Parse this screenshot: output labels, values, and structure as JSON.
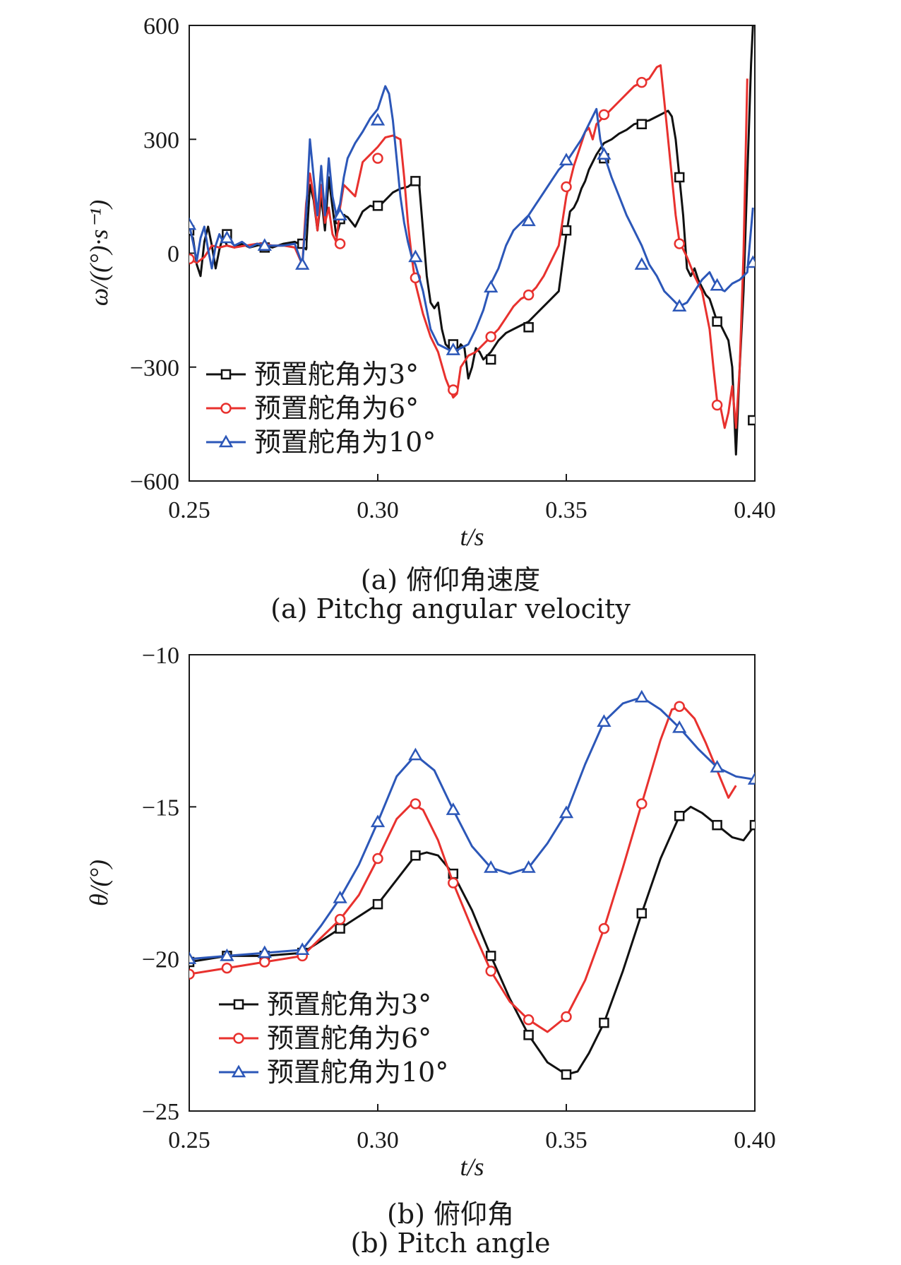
{
  "chart_data": [
    {
      "type": "line",
      "caption_cn": "(a) 俯仰角速度",
      "caption_en": "(a) Pitchg angular velocity",
      "xlabel": "t/s",
      "ylabel": "ω/((°)·s⁻¹)",
      "xlim": [
        0.25,
        0.4
      ],
      "ylim": [
        -600,
        600
      ],
      "xticks": [
        "0.25",
        "0.30",
        "0.35",
        "0.40"
      ],
      "yticks": [
        "600",
        "300",
        "0",
        "−300",
        "−600"
      ],
      "grid": false,
      "legend_position": "bottom-left",
      "series": [
        {
          "name": "预置舵角为3°",
          "color": "#111111",
          "marker": "square",
          "x": [
            0.25,
            0.251,
            0.252,
            0.253,
            0.254,
            0.255,
            0.256,
            0.257,
            0.258,
            0.259,
            0.26,
            0.262,
            0.264,
            0.266,
            0.268,
            0.27,
            0.272,
            0.275,
            0.278,
            0.28,
            0.281,
            0.282,
            0.283,
            0.284,
            0.285,
            0.286,
            0.287,
            0.288,
            0.289,
            0.29,
            0.291,
            0.292,
            0.294,
            0.296,
            0.298,
            0.3,
            0.302,
            0.304,
            0.306,
            0.308,
            0.31,
            0.311,
            0.312,
            0.313,
            0.314,
            0.315,
            0.316,
            0.317,
            0.318,
            0.319,
            0.32,
            0.321,
            0.322,
            0.323,
            0.324,
            0.325,
            0.326,
            0.327,
            0.328,
            0.33,
            0.332,
            0.334,
            0.336,
            0.338,
            0.34,
            0.342,
            0.345,
            0.348,
            0.35,
            0.351,
            0.352,
            0.353,
            0.354,
            0.355,
            0.356,
            0.358,
            0.36,
            0.362,
            0.364,
            0.366,
            0.368,
            0.37,
            0.372,
            0.374,
            0.376,
            0.377,
            0.378,
            0.379,
            0.38,
            0.381,
            0.382,
            0.383,
            0.384,
            0.385,
            0.386,
            0.387,
            0.388,
            0.389,
            0.39,
            0.391,
            0.392,
            0.393,
            0.394,
            0.395,
            0.396,
            0.397,
            0.398,
            0.399,
            0.3995
          ],
          "y": [
            55,
            40,
            -30,
            -60,
            30,
            70,
            20,
            -40,
            10,
            45,
            20,
            15,
            25,
            15,
            20,
            25,
            15,
            25,
            30,
            20,
            10,
            180,
            140,
            60,
            150,
            60,
            200,
            120,
            45,
            80,
            100,
            95,
            70,
            110,
            125,
            120,
            140,
            160,
            170,
            175,
            190,
            180,
            60,
            -60,
            -130,
            -145,
            -130,
            -200,
            -240,
            -250,
            -255,
            -260,
            -240,
            -250,
            -330,
            -300,
            -250,
            -260,
            -280,
            -260,
            -230,
            -210,
            -200,
            -190,
            -180,
            -160,
            -130,
            -100,
            50,
            110,
            120,
            140,
            170,
            190,
            220,
            260,
            290,
            300,
            315,
            325,
            340,
            345,
            350,
            360,
            370,
            375,
            360,
            300,
            200,
            100,
            -40,
            -60,
            -40,
            -70,
            -90,
            -110,
            -120,
            -150,
            -180,
            -190,
            -210,
            -230,
            -300,
            -530,
            -300,
            -100,
            200,
            500,
            600
          ],
          "markers_x": [
            0.25,
            0.26,
            0.27,
            0.28,
            0.29,
            0.3,
            0.31,
            0.32,
            0.33,
            0.34,
            0.35,
            0.36,
            0.37,
            0.38,
            0.39,
            0.3995
          ],
          "markers_y": [
            60,
            50,
            15,
            25,
            90,
            125,
            190,
            -240,
            -280,
            -195,
            60,
            250,
            340,
            200,
            -180,
            -440
          ]
        },
        {
          "name": "预置舵角为6°",
          "color": "#e8312e",
          "marker": "circle",
          "x": [
            0.25,
            0.252,
            0.254,
            0.256,
            0.258,
            0.26,
            0.262,
            0.265,
            0.268,
            0.27,
            0.272,
            0.275,
            0.278,
            0.28,
            0.281,
            0.282,
            0.283,
            0.284,
            0.285,
            0.286,
            0.287,
            0.288,
            0.289,
            0.29,
            0.291,
            0.292,
            0.294,
            0.296,
            0.298,
            0.3,
            0.302,
            0.304,
            0.306,
            0.307,
            0.308,
            0.309,
            0.31,
            0.312,
            0.314,
            0.316,
            0.318,
            0.32,
            0.321,
            0.322,
            0.324,
            0.326,
            0.328,
            0.33,
            0.332,
            0.334,
            0.336,
            0.338,
            0.34,
            0.342,
            0.344,
            0.346,
            0.348,
            0.35,
            0.352,
            0.354,
            0.355,
            0.356,
            0.357,
            0.358,
            0.36,
            0.362,
            0.364,
            0.366,
            0.368,
            0.37,
            0.372,
            0.374,
            0.375,
            0.376,
            0.377,
            0.378,
            0.379,
            0.38,
            0.382,
            0.384,
            0.386,
            0.388,
            0.389,
            0.39,
            0.391,
            0.392,
            0.393,
            0.394,
            0.395,
            0.396,
            0.397,
            0.398
          ],
          "y": [
            -15,
            -25,
            -10,
            20,
            15,
            20,
            15,
            20,
            25,
            25,
            20,
            20,
            15,
            -30,
            130,
            210,
            150,
            60,
            180,
            80,
            120,
            50,
            30,
            120,
            180,
            170,
            150,
            240,
            260,
            280,
            305,
            310,
            300,
            200,
            80,
            -10,
            -80,
            -160,
            -220,
            -260,
            -330,
            -380,
            -370,
            -300,
            -270,
            -260,
            -240,
            -220,
            -200,
            -170,
            -140,
            -120,
            -110,
            -90,
            -60,
            -20,
            20,
            150,
            230,
            290,
            320,
            330,
            300,
            340,
            360,
            380,
            400,
            420,
            440,
            450,
            460,
            490,
            495,
            400,
            300,
            200,
            100,
            30,
            -10,
            -60,
            -100,
            -200,
            -300,
            -390,
            -410,
            -460,
            -420,
            -350,
            -460,
            -300,
            0,
            460
          ],
          "markers_x": [
            0.25,
            0.29,
            0.3,
            0.31,
            0.32,
            0.33,
            0.34,
            0.35,
            0.36,
            0.37,
            0.38,
            0.39
          ],
          "markers_y": [
            -15,
            25,
            250,
            -65,
            -360,
            -220,
            -110,
            175,
            365,
            450,
            25,
            -400
          ]
        },
        {
          "name": "预置舵角为10°",
          "color": "#2c57b8",
          "marker": "triangle",
          "x": [
            0.25,
            0.251,
            0.252,
            0.253,
            0.254,
            0.255,
            0.256,
            0.257,
            0.258,
            0.259,
            0.26,
            0.262,
            0.264,
            0.266,
            0.268,
            0.27,
            0.272,
            0.275,
            0.278,
            0.28,
            0.281,
            0.282,
            0.283,
            0.284,
            0.285,
            0.286,
            0.287,
            0.288,
            0.289,
            0.29,
            0.291,
            0.292,
            0.294,
            0.296,
            0.298,
            0.3,
            0.301,
            0.302,
            0.303,
            0.304,
            0.305,
            0.306,
            0.307,
            0.308,
            0.309,
            0.31,
            0.312,
            0.314,
            0.316,
            0.318,
            0.32,
            0.322,
            0.324,
            0.326,
            0.328,
            0.33,
            0.332,
            0.334,
            0.336,
            0.338,
            0.34,
            0.342,
            0.344,
            0.346,
            0.348,
            0.35,
            0.352,
            0.354,
            0.356,
            0.358,
            0.359,
            0.36,
            0.362,
            0.364,
            0.366,
            0.368,
            0.37,
            0.372,
            0.374,
            0.376,
            0.378,
            0.38,
            0.382,
            0.384,
            0.386,
            0.388,
            0.39,
            0.392,
            0.394,
            0.396,
            0.398,
            0.3995
          ],
          "y": [
            75,
            30,
            -20,
            40,
            70,
            10,
            -40,
            20,
            50,
            30,
            40,
            20,
            30,
            15,
            25,
            20,
            20,
            20,
            25,
            -30,
            100,
            300,
            200,
            100,
            230,
            100,
            250,
            150,
            100,
            130,
            200,
            250,
            290,
            320,
            355,
            380,
            410,
            440,
            420,
            350,
            250,
            150,
            80,
            30,
            -10,
            -30,
            -100,
            -200,
            -240,
            -250,
            -260,
            -250,
            -240,
            -200,
            -150,
            -80,
            -40,
            20,
            60,
            80,
            100,
            130,
            160,
            190,
            220,
            240,
            270,
            300,
            340,
            380,
            300,
            260,
            200,
            150,
            100,
            60,
            20,
            -30,
            -60,
            -100,
            -120,
            -140,
            -130,
            -100,
            -70,
            -50,
            -90,
            -100,
            -80,
            -70,
            -50,
            120
          ],
          "markers_x": [
            0.25,
            0.26,
            0.27,
            0.28,
            0.29,
            0.3,
            0.31,
            0.32,
            0.33,
            0.34,
            0.35,
            0.36,
            0.37,
            0.38,
            0.39,
            0.3995
          ],
          "markers_y": [
            75,
            40,
            20,
            -30,
            100,
            350,
            -10,
            -255,
            -90,
            85,
            245,
            260,
            -30,
            -140,
            -85,
            -25
          ]
        }
      ]
    },
    {
      "type": "line",
      "caption_cn": "(b) 俯仰角",
      "caption_en": "(b) Pitch angle",
      "xlabel": "t/s",
      "ylabel": "θ/(°)",
      "xlim": [
        0.25,
        0.4
      ],
      "ylim": [
        -25,
        -10
      ],
      "xticks": [
        "0.25",
        "0.30",
        "0.35",
        "0.40"
      ],
      "yticks": [
        "−10",
        "−15",
        "−20",
        "−25"
      ],
      "grid": false,
      "legend_position": "bottom-left",
      "series": [
        {
          "name": "预置舵角为3°",
          "color": "#111111",
          "marker": "square",
          "x": [
            0.25,
            0.26,
            0.27,
            0.28,
            0.29,
            0.3,
            0.305,
            0.31,
            0.313,
            0.316,
            0.32,
            0.325,
            0.33,
            0.335,
            0.34,
            0.345,
            0.35,
            0.353,
            0.356,
            0.36,
            0.365,
            0.37,
            0.375,
            0.38,
            0.383,
            0.386,
            0.39,
            0.394,
            0.397,
            0.4
          ],
          "y": [
            -20.1,
            -19.9,
            -19.9,
            -19.8,
            -19.0,
            -18.2,
            -17.4,
            -16.6,
            -16.5,
            -16.6,
            -17.2,
            -18.4,
            -19.9,
            -21.3,
            -22.5,
            -23.4,
            -23.8,
            -23.7,
            -23.1,
            -22.1,
            -20.4,
            -18.5,
            -16.7,
            -15.3,
            -15.0,
            -15.2,
            -15.6,
            -16.0,
            -16.1,
            -15.6
          ],
          "markers_x": [
            0.25,
            0.26,
            0.27,
            0.28,
            0.29,
            0.3,
            0.31,
            0.32,
            0.33,
            0.34,
            0.35,
            0.36,
            0.37,
            0.38,
            0.39,
            0.4
          ],
          "markers_y": [
            -20.1,
            -19.9,
            -19.9,
            -19.8,
            -19.0,
            -18.2,
            -16.6,
            -17.2,
            -19.9,
            -22.5,
            -23.8,
            -22.1,
            -18.5,
            -15.3,
            -15.6,
            -15.6
          ]
        },
        {
          "name": "预置舵角为6°",
          "color": "#e8312e",
          "marker": "circle",
          "x": [
            0.25,
            0.26,
            0.27,
            0.28,
            0.285,
            0.29,
            0.295,
            0.3,
            0.305,
            0.309,
            0.312,
            0.316,
            0.32,
            0.325,
            0.33,
            0.335,
            0.34,
            0.345,
            0.35,
            0.355,
            0.36,
            0.365,
            0.37,
            0.375,
            0.378,
            0.381,
            0.384,
            0.387,
            0.39,
            0.393,
            0.395
          ],
          "y": [
            -20.5,
            -20.3,
            -20.1,
            -19.9,
            -19.3,
            -18.7,
            -17.9,
            -16.7,
            -15.4,
            -14.9,
            -15.1,
            -16.1,
            -17.5,
            -19.0,
            -20.4,
            -21.4,
            -22.0,
            -22.4,
            -21.9,
            -20.7,
            -19.0,
            -17.0,
            -14.9,
            -12.8,
            -11.8,
            -11.7,
            -12.1,
            -12.9,
            -13.8,
            -14.7,
            -14.3
          ],
          "markers_x": [
            0.25,
            0.26,
            0.27,
            0.28,
            0.29,
            0.3,
            0.31,
            0.32,
            0.33,
            0.34,
            0.35,
            0.36,
            0.37,
            0.38
          ],
          "markers_y": [
            -20.5,
            -20.3,
            -20.1,
            -19.9,
            -18.7,
            -16.7,
            -14.9,
            -17.5,
            -20.4,
            -22.0,
            -21.9,
            -19.0,
            -14.9,
            -11.7
          ]
        },
        {
          "name": "预置舵角为10°",
          "color": "#2c57b8",
          "marker": "triangle",
          "x": [
            0.25,
            0.26,
            0.27,
            0.28,
            0.285,
            0.29,
            0.295,
            0.3,
            0.305,
            0.31,
            0.315,
            0.32,
            0.325,
            0.33,
            0.335,
            0.34,
            0.345,
            0.35,
            0.355,
            0.36,
            0.365,
            0.37,
            0.375,
            0.38,
            0.385,
            0.39,
            0.395,
            0.4
          ],
          "y": [
            -20.0,
            -19.9,
            -19.8,
            -19.7,
            -18.9,
            -18.0,
            -16.9,
            -15.5,
            -14.0,
            -13.3,
            -13.8,
            -15.1,
            -16.3,
            -17.0,
            -17.2,
            -17.0,
            -16.2,
            -15.2,
            -13.6,
            -12.2,
            -11.6,
            -11.4,
            -11.8,
            -12.4,
            -13.1,
            -13.7,
            -14.0,
            -14.1
          ],
          "markers_x": [
            0.25,
            0.26,
            0.27,
            0.28,
            0.29,
            0.3,
            0.31,
            0.32,
            0.33,
            0.34,
            0.35,
            0.36,
            0.37,
            0.38,
            0.39,
            0.4
          ],
          "markers_y": [
            -20.0,
            -19.9,
            -19.8,
            -19.7,
            -18.0,
            -15.5,
            -13.3,
            -15.1,
            -17.0,
            -17.0,
            -15.2,
            -12.2,
            -11.4,
            -12.4,
            -13.7,
            -14.1
          ]
        }
      ]
    }
  ]
}
